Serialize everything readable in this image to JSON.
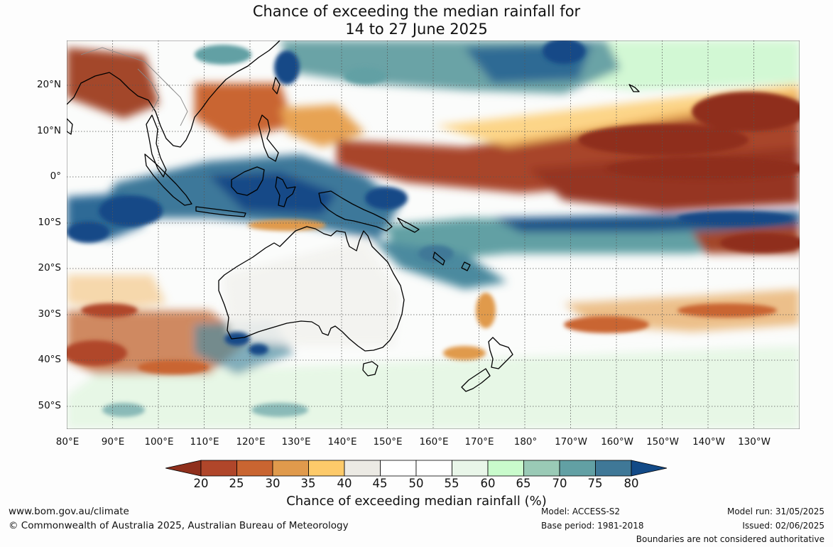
{
  "title": {
    "line1": "Chance of exceeding the median rainfall for",
    "line2": "14 to 27 June 2025"
  },
  "map": {
    "projection": "equirectangular",
    "lon_range": [
      80,
      240
    ],
    "lat_range": [
      -55,
      30
    ],
    "lat_ticks": [
      "20°N",
      "10°N",
      "0°",
      "10°S",
      "20°S",
      "30°S",
      "40°S",
      "50°S"
    ],
    "lon_ticks": [
      "80°E",
      "90°E",
      "100°E",
      "110°E",
      "120°E",
      "130°E",
      "140°E",
      "150°E",
      "160°E",
      "170°E",
      "180°",
      "170°W",
      "160°W",
      "150°W",
      "140°W",
      "130°W"
    ],
    "gridlines": true,
    "coastlines": "Asia, Maritime Continent, New Guinea, Australia, New Zealand, Pacific islands"
  },
  "colorbar": {
    "ticks": [
      "20",
      "25",
      "30",
      "35",
      "40",
      "45",
      "50",
      "55",
      "60",
      "65",
      "70",
      "75",
      "80"
    ],
    "colors": [
      "#8f2f1c",
      "#b0462a",
      "#c96531",
      "#e09a4c",
      "#fdca6a",
      "#eceae4",
      "#ffffff",
      "#ffffff",
      "#e9f6e9",
      "#c9fbcc",
      "#9acab6",
      "#62a0a4",
      "#3f7897",
      "#124a87"
    ],
    "extend": "both",
    "title": "Chance of exceeding median rainfall (%)"
  },
  "footer": {
    "website": "www.bom.gov.au/climate",
    "copyright": "© Commonwealth of Australia 2025, Australian Bureau of Meteorology",
    "model": "Model: ACCESS-S2",
    "base_period": "Base period: 1981-2018",
    "model_run": "Model run: 31/05/2025",
    "issued": "Issued: 02/06/2025",
    "disclaimer": "Boundaries are not considered authoritative"
  }
}
